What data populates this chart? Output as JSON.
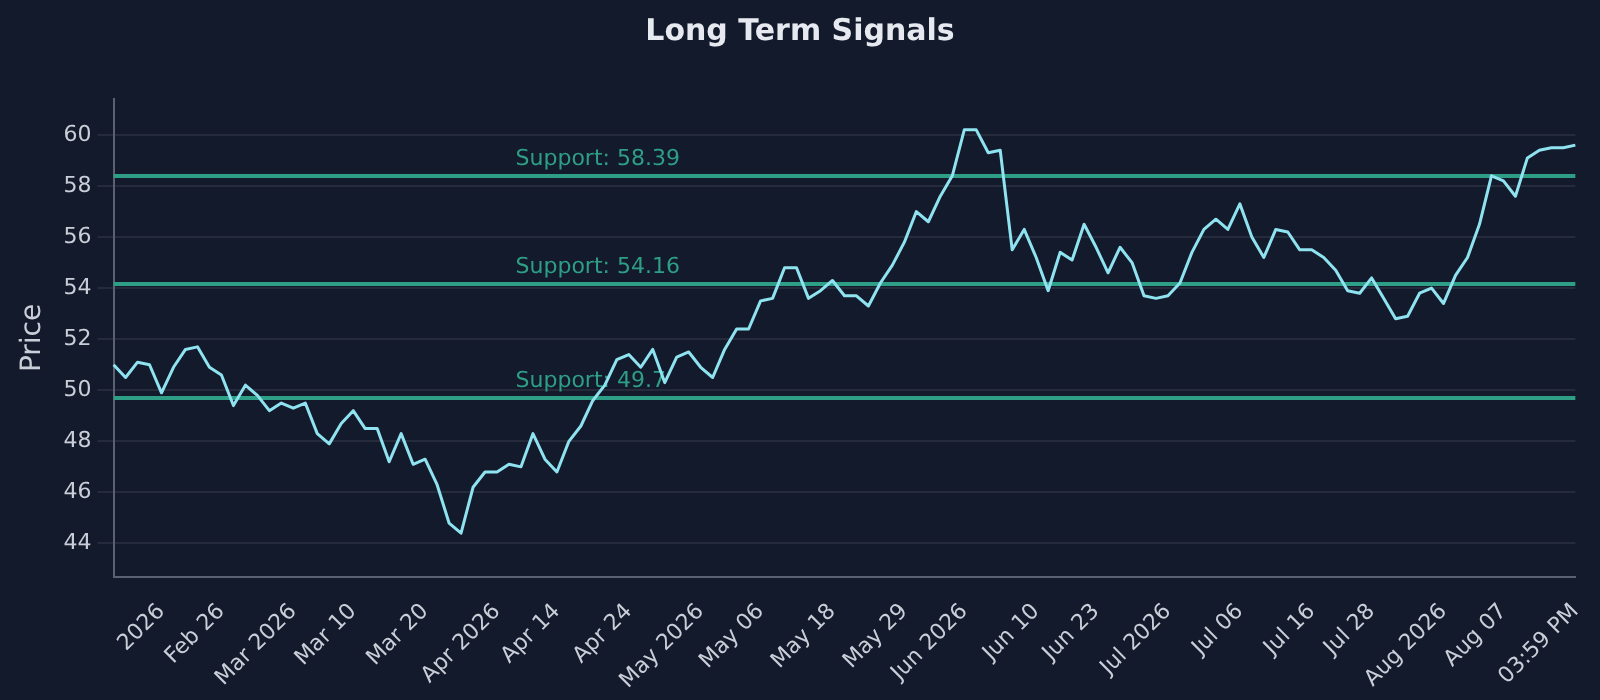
{
  "chart_data": {
    "type": "line",
    "title": "Long Term Signals",
    "ylabel": "Price",
    "categories": [
      null,
      null,
      null,
      null,
      "2026",
      null,
      null,
      null,
      null,
      "Feb 26",
      null,
      null,
      null,
      null,
      null,
      "Mar 2026",
      null,
      null,
      null,
      null,
      "Mar 10",
      null,
      null,
      null,
      null,
      null,
      "Mar 20",
      null,
      null,
      null,
      null,
      null,
      "Apr 2026",
      null,
      null,
      null,
      null,
      "Apr 14",
      null,
      null,
      null,
      null,
      null,
      "Apr 24",
      null,
      null,
      null,
      null,
      null,
      "May 2026",
      null,
      null,
      null,
      null,
      "May 06",
      null,
      null,
      null,
      null,
      null,
      "May 18",
      null,
      null,
      null,
      null,
      null,
      "May 29",
      null,
      null,
      null,
      null,
      "Jun 2026",
      null,
      null,
      null,
      null,
      null,
      "Jun 10",
      null,
      null,
      null,
      null,
      "Jun 23",
      null,
      null,
      null,
      null,
      null,
      "Jul 2026",
      null,
      null,
      null,
      null,
      null,
      "Jul 06",
      null,
      null,
      null,
      null,
      null,
      "Jul 16",
      null,
      null,
      null,
      null,
      "Jul 28",
      null,
      null,
      null,
      null,
      null,
      "Aug 2026",
      null,
      null,
      null,
      null,
      "Aug 07",
      null,
      null,
      null,
      null,
      null,
      "03:59 PM"
    ],
    "series": [
      {
        "color": "#8fe3f0",
        "values": [
          51.0,
          50.5,
          51.1,
          51.0,
          49.9,
          50.9,
          51.6,
          51.7,
          50.9,
          50.6,
          49.4,
          50.2,
          49.8,
          49.2,
          49.5,
          49.3,
          49.5,
          48.3,
          47.9,
          48.7,
          49.2,
          48.5,
          48.5,
          47.2,
          48.3,
          47.1,
          47.3,
          46.3,
          44.8,
          44.4,
          46.2,
          46.8,
          46.8,
          47.1,
          47.0,
          48.3,
          47.3,
          46.8,
          48.0,
          48.6,
          49.6,
          50.2,
          51.2,
          51.4,
          50.9,
          51.6,
          50.3,
          51.3,
          51.5,
          50.9,
          50.5,
          51.6,
          52.4,
          52.4,
          53.5,
          53.6,
          54.8,
          54.8,
          53.6,
          53.9,
          54.3,
          53.7,
          53.7,
          53.3,
          54.2,
          54.9,
          55.8,
          57.0,
          56.6,
          57.6,
          58.4,
          60.2,
          60.2,
          59.3,
          59.4,
          55.5,
          56.3,
          55.2,
          53.9,
          55.4,
          55.1,
          56.5,
          55.6,
          54.6,
          55.6,
          55.0,
          53.7,
          53.6,
          53.7,
          54.2,
          55.4,
          56.3,
          56.7,
          56.3,
          57.3,
          56.0,
          55.2,
          56.3,
          56.2,
          55.5,
          55.5,
          55.2,
          54.7,
          53.9,
          53.8,
          54.4,
          53.6,
          52.8,
          52.9,
          53.8,
          54.0,
          53.4,
          54.5,
          55.2,
          56.5,
          58.4,
          58.2,
          57.6,
          59.1,
          59.4,
          59.5,
          59.5,
          59.6
        ]
      }
    ],
    "ylim": [
      42.7,
      61.4
    ],
    "yticks": [
      44,
      46,
      48,
      50,
      52,
      54,
      56,
      58,
      60
    ],
    "grid": "y",
    "legend": false,
    "marker": "none",
    "line_style": "solid",
    "ref_lines": [
      {
        "axis": "y",
        "value": 58.39,
        "label": "Support: 58.39",
        "color": "#2e9e86"
      },
      {
        "axis": "y",
        "value": 54.16,
        "label": "Support: 54.16",
        "color": "#2e9e86"
      },
      {
        "axis": "y",
        "value": 49.7,
        "label": "Support: 49.7",
        "color": "#2e9e86"
      }
    ]
  }
}
